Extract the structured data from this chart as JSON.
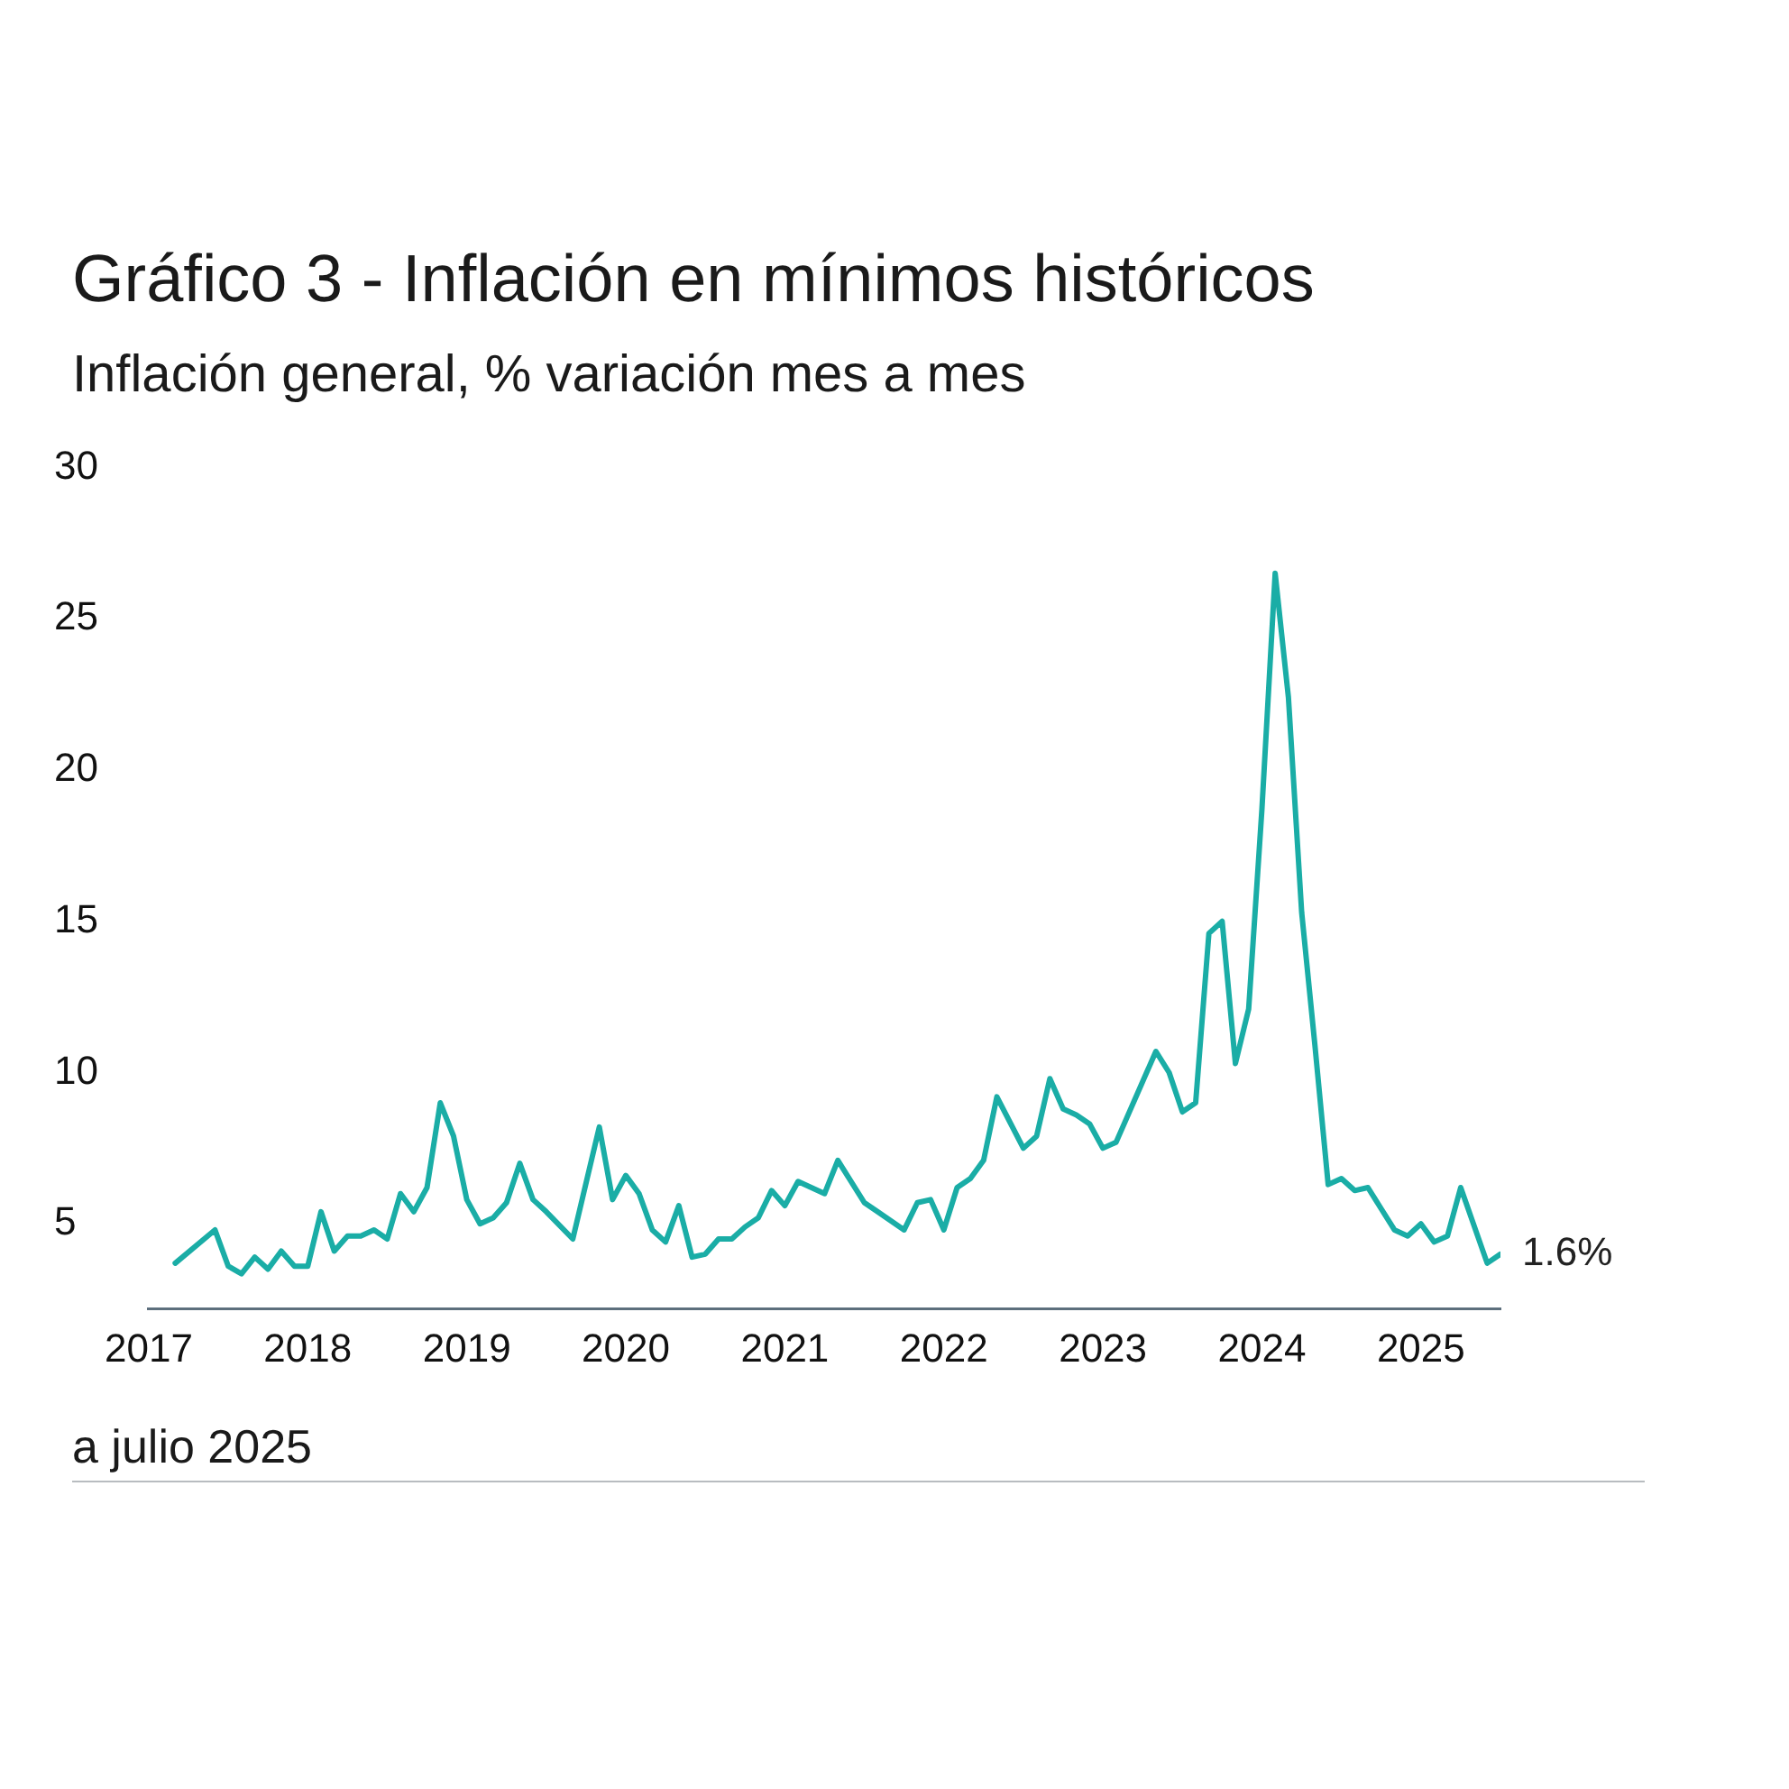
{
  "chart_data": {
    "type": "line",
    "title": "Gráfico 3 - Inflación en mínimos históricos",
    "subtitle": "Inflación general, % variación mes a mes",
    "x": [
      "2017-03",
      "2017-06",
      "2017-07",
      "2017-08",
      "2017-09",
      "2017-10",
      "2017-11",
      "2017-12",
      "2018-01",
      "2018-02",
      "2018-03",
      "2018-04",
      "2018-05",
      "2018-06",
      "2018-07",
      "2018-08",
      "2018-09",
      "2018-10",
      "2018-11",
      "2018-12",
      "2019-01",
      "2019-02",
      "2019-03",
      "2019-04",
      "2019-05",
      "2019-06",
      "2019-07",
      "2019-09",
      "2019-11",
      "2019-12",
      "2020-01",
      "2020-02",
      "2020-03",
      "2020-04",
      "2020-05",
      "2020-06",
      "2020-07",
      "2020-08",
      "2020-09",
      "2020-10",
      "2020-11",
      "2020-12",
      "2021-01",
      "2021-02",
      "2021-04",
      "2021-05",
      "2021-07",
      "2021-08",
      "2021-10",
      "2021-11",
      "2021-12",
      "2022-01",
      "2022-02",
      "2022-03",
      "2022-04",
      "2022-05",
      "2022-07",
      "2022-08",
      "2022-09",
      "2022-10",
      "2022-11",
      "2022-12",
      "2023-01",
      "2023-02",
      "2023-05",
      "2023-06",
      "2023-07",
      "2023-08",
      "2023-09",
      "2023-10",
      "2023-11",
      "2023-12",
      "2024-01",
      "2024-02",
      "2024-03",
      "2024-04",
      "2024-05",
      "2024-06",
      "2024-07",
      "2024-08",
      "2024-09",
      "2024-10",
      "2024-11",
      "2024-12",
      "2025-01",
      "2025-02",
      "2025-03",
      "2025-04",
      "2025-06",
      "2025-07"
    ],
    "series": [
      {
        "color": "#1aada6",
        "values": [
          3.7,
          4.8,
          3.6,
          3.35,
          3.9,
          3.5,
          4.1,
          3.6,
          3.6,
          5.4,
          4.1,
          4.6,
          4.6,
          4.8,
          4.5,
          6.0,
          5.4,
          6.2,
          9.0,
          7.9,
          5.8,
          5.0,
          5.2,
          5.7,
          7.0,
          5.8,
          5.4,
          4.5,
          8.2,
          5.8,
          6.6,
          6.0,
          4.8,
          4.4,
          5.6,
          3.9,
          4.0,
          4.5,
          4.5,
          4.9,
          5.2,
          6.1,
          5.6,
          6.4,
          6.0,
          7.1,
          5.7,
          5.4,
          4.8,
          5.7,
          5.8,
          4.8,
          6.2,
          6.5,
          7.1,
          9.2,
          7.5,
          7.9,
          9.8,
          8.8,
          8.6,
          8.3,
          7.5,
          7.7,
          10.7,
          10.0,
          8.7,
          9.0,
          14.6,
          15.0,
          10.3,
          12.1,
          18.7,
          26.5,
          22.4,
          15.3,
          10.9,
          6.3,
          6.5,
          6.1,
          6.2,
          5.5,
          4.8,
          4.6,
          5.0,
          4.4,
          4.6,
          6.2,
          3.7,
          4.0
        ]
      }
    ],
    "xlim": [
      "2017-01",
      "2025-07"
    ],
    "xticks": [
      {
        "value": "2017-01",
        "label": "2017"
      },
      {
        "value": "2018-01",
        "label": "2018"
      },
      {
        "value": "2019-01",
        "label": "2019"
      },
      {
        "value": "2020-01",
        "label": "2020"
      },
      {
        "value": "2021-01",
        "label": "2021"
      },
      {
        "value": "2022-01",
        "label": "2022"
      },
      {
        "value": "2023-01",
        "label": "2023"
      },
      {
        "value": "2024-01",
        "label": "2024"
      },
      {
        "value": "2025-01",
        "label": "2025"
      }
    ],
    "ylim": [
      2.2,
      30
    ],
    "yticks": [
      5,
      10,
      15,
      20,
      25,
      30
    ],
    "grid": false,
    "marker": "none",
    "annotations": [
      {
        "text": "1.6%",
        "x": "2025-07",
        "y": 4.0
      },
      "a julio 2025"
    ]
  }
}
